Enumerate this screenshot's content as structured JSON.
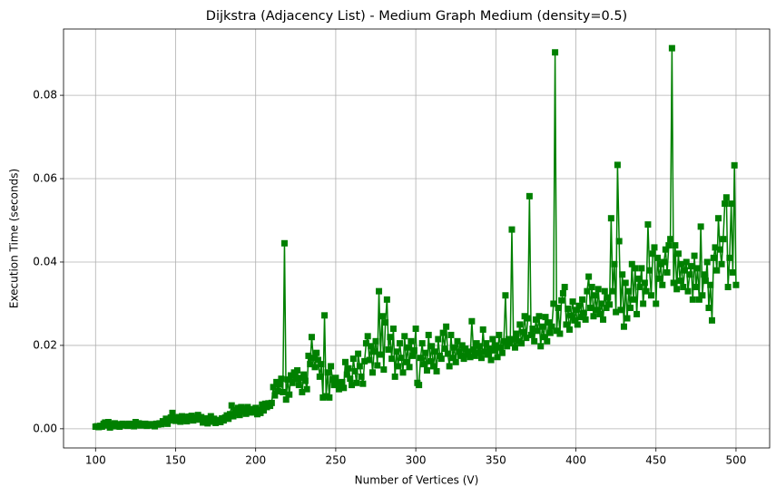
{
  "chart_data": {
    "type": "line",
    "title": "Dijkstra (Adjacency List) - Medium Graph Medium (density=0.5)",
    "x_label": "Number of Vertices (V)",
    "y_label": "Execution Time (seconds)",
    "grid": true,
    "marker": "square",
    "xlim": [
      80,
      521
    ],
    "ylim": [
      -0.0046,
      0.0959
    ],
    "xticks": [
      100,
      150,
      200,
      250,
      300,
      350,
      400,
      450,
      500
    ],
    "yticks": [
      {
        "value": 0,
        "label": "0.00"
      },
      {
        "value": 0.02,
        "label": "0.02"
      },
      {
        "value": 0.04,
        "label": "0.04"
      },
      {
        "value": 0.06,
        "label": "0.06"
      },
      {
        "value": 0.08,
        "label": "0.08"
      }
    ],
    "x": [
      100,
      101,
      102,
      103,
      104,
      105,
      106,
      107,
      108,
      109,
      110,
      111,
      112,
      113,
      114,
      115,
      116,
      117,
      118,
      119,
      120,
      121,
      122,
      123,
      124,
      125,
      126,
      127,
      128,
      129,
      130,
      131,
      132,
      133,
      134,
      135,
      136,
      137,
      138,
      139,
      140,
      141,
      142,
      143,
      144,
      145,
      146,
      147,
      148,
      149,
      150,
      151,
      152,
      153,
      154,
      155,
      156,
      157,
      158,
      159,
      160,
      161,
      162,
      163,
      164,
      165,
      166,
      167,
      168,
      169,
      170,
      171,
      172,
      173,
      174,
      175,
      176,
      177,
      178,
      179,
      180,
      181,
      182,
      183,
      184,
      185,
      186,
      187,
      188,
      189,
      190,
      191,
      192,
      193,
      194,
      195,
      196,
      197,
      198,
      199,
      200,
      201,
      202,
      203,
      204,
      205,
      206,
      207,
      208,
      209,
      210,
      211,
      212,
      213,
      214,
      215,
      216,
      217,
      218,
      219,
      220,
      221,
      222,
      223,
      224,
      225,
      226,
      227,
      228,
      229,
      230,
      231,
      232,
      233,
      234,
      235,
      236,
      237,
      238,
      239,
      240,
      241,
      242,
      243,
      244,
      245,
      246,
      247,
      248,
      249,
      250,
      251,
      252,
      253,
      254,
      255,
      256,
      257,
      258,
      259,
      260,
      261,
      262,
      263,
      264,
      265,
      266,
      267,
      268,
      269,
      270,
      271,
      272,
      273,
      274,
      275,
      276,
      277,
      278,
      279,
      280,
      281,
      282,
      283,
      284,
      285,
      286,
      287,
      288,
      289,
      290,
      291,
      292,
      293,
      294,
      295,
      296,
      297,
      298,
      299,
      300,
      301,
      302,
      303,
      304,
      305,
      306,
      307,
      308,
      309,
      310,
      311,
      312,
      313,
      314,
      315,
      316,
      317,
      318,
      319,
      320,
      321,
      322,
      323,
      324,
      325,
      326,
      327,
      328,
      329,
      330,
      331,
      332,
      333,
      334,
      335,
      336,
      337,
      338,
      339,
      340,
      341,
      342,
      343,
      344,
      345,
      346,
      347,
      348,
      349,
      350,
      351,
      352,
      353,
      354,
      355,
      356,
      357,
      358,
      359,
      360,
      361,
      362,
      363,
      364,
      365,
      366,
      367,
      368,
      369,
      370,
      371,
      372,
      373,
      374,
      375,
      376,
      377,
      378,
      379,
      380,
      381,
      382,
      383,
      384,
      385,
      386,
      387,
      388,
      389,
      390,
      391,
      392,
      393,
      394,
      395,
      396,
      397,
      398,
      399,
      400,
      401,
      402,
      403,
      404,
      405,
      406,
      407,
      408,
      409,
      410,
      411,
      412,
      413,
      414,
      415,
      416,
      417,
      418,
      419,
      420,
      421,
      422,
      423,
      424,
      425,
      426,
      427,
      428,
      429,
      430,
      431,
      432,
      433,
      434,
      435,
      436,
      437,
      438,
      439,
      440,
      441,
      442,
      443,
      444,
      445,
      446,
      447,
      448,
      449,
      450,
      451,
      452,
      453,
      454,
      455,
      456,
      457,
      458,
      459,
      460,
      461,
      462,
      463,
      464,
      465,
      466,
      467,
      468,
      469,
      470,
      471,
      472,
      473,
      474,
      475,
      476,
      477,
      478,
      479,
      480,
      481,
      482,
      483,
      484,
      485,
      486,
      487,
      488,
      489,
      490,
      491,
      492,
      493,
      494,
      495,
      496,
      497,
      498,
      499,
      500
    ],
    "series": [
      {
        "color": "#008000",
        "values": [
          0.0005,
          0.0006,
          0.0004,
          0.0007,
          0.0005,
          0.0012,
          0.0015,
          0.0008,
          0.0016,
          0.0003,
          0.001,
          0.0006,
          0.0013,
          0.0007,
          0.0011,
          0.0005,
          0.0009,
          0.0012,
          0.0008,
          0.001,
          0.0007,
          0.0012,
          0.0009,
          0.0011,
          0.0006,
          0.0016,
          0.001,
          0.0013,
          0.0008,
          0.0011,
          0.0009,
          0.0012,
          0.0007,
          0.001,
          0.0008,
          0.0011,
          0.0009,
          0.0006,
          0.0012,
          0.001,
          0.0013,
          0.0011,
          0.0018,
          0.0015,
          0.0024,
          0.0012,
          0.002,
          0.0027,
          0.0038,
          0.0025,
          0.0019,
          0.0022,
          0.0028,
          0.0017,
          0.003,
          0.0021,
          0.0026,
          0.0018,
          0.0029,
          0.0023,
          0.0031,
          0.002,
          0.0027,
          0.0024,
          0.0033,
          0.0022,
          0.0028,
          0.0015,
          0.0019,
          0.0025,
          0.0013,
          0.0022,
          0.003,
          0.0017,
          0.0024,
          0.0014,
          0.0021,
          0.0018,
          0.0016,
          0.0025,
          0.002,
          0.0027,
          0.0032,
          0.0024,
          0.0035,
          0.0056,
          0.003,
          0.0045,
          0.0038,
          0.005,
          0.0033,
          0.0052,
          0.0041,
          0.0048,
          0.0036,
          0.0052,
          0.0044,
          0.0039,
          0.0047,
          0.0042,
          0.005,
          0.0035,
          0.0045,
          0.0038,
          0.0058,
          0.0044,
          0.006,
          0.0052,
          0.0061,
          0.0055,
          0.0062,
          0.01,
          0.008,
          0.0112,
          0.009,
          0.0106,
          0.012,
          0.0088,
          0.0445,
          0.007,
          0.0118,
          0.0082,
          0.0128,
          0.011,
          0.0135,
          0.012,
          0.014,
          0.0105,
          0.0122,
          0.0088,
          0.013,
          0.0115,
          0.0095,
          0.0175,
          0.0155,
          0.022,
          0.017,
          0.0148,
          0.0182,
          0.0165,
          0.0125,
          0.0155,
          0.0075,
          0.0272,
          0.0078,
          0.0135,
          0.0075,
          0.015,
          0.0118,
          0.0105,
          0.0122,
          0.011,
          0.0095,
          0.01,
          0.0112,
          0.0098,
          0.016,
          0.013,
          0.0145,
          0.012,
          0.0105,
          0.0168,
          0.0138,
          0.011,
          0.018,
          0.015,
          0.0125,
          0.0108,
          0.0162,
          0.0205,
          0.0222,
          0.0165,
          0.0198,
          0.0135,
          0.0185,
          0.021,
          0.0152,
          0.033,
          0.0178,
          0.027,
          0.0142,
          0.0255,
          0.031,
          0.019,
          0.022,
          0.0168,
          0.024,
          0.0125,
          0.0185,
          0.015,
          0.0205,
          0.017,
          0.0135,
          0.0222,
          0.016,
          0.0195,
          0.0148,
          0.021,
          0.0175,
          0.0188,
          0.024,
          0.011,
          0.0105,
          0.017,
          0.0205,
          0.0155,
          0.0182,
          0.014,
          0.0225,
          0.0162,
          0.0198,
          0.015,
          0.0185,
          0.0138,
          0.0215,
          0.0175,
          0.0168,
          0.023,
          0.0192,
          0.0245,
          0.018,
          0.015,
          0.0225,
          0.017,
          0.0195,
          0.016,
          0.021,
          0.0185,
          0.0175,
          0.02,
          0.0168,
          0.0192,
          0.0178,
          0.0185,
          0.0172,
          0.0258,
          0.019,
          0.0175,
          0.0205,
          0.0182,
          0.0198,
          0.017,
          0.0238,
          0.0185,
          0.0205,
          0.0178,
          0.0192,
          0.0165,
          0.0215,
          0.0188,
          0.02,
          0.0172,
          0.0225,
          0.0195,
          0.0182,
          0.021,
          0.032,
          0.0198,
          0.0215,
          0.0205,
          0.0478,
          0.0215,
          0.0195,
          0.0228,
          0.021,
          0.025,
          0.0205,
          0.0232,
          0.027,
          0.0218,
          0.0265,
          0.0558,
          0.0225,
          0.024,
          0.021,
          0.0262,
          0.0235,
          0.027,
          0.0198,
          0.0245,
          0.022,
          0.0268,
          0.021,
          0.0255,
          0.023,
          0.0245,
          0.03,
          0.0903,
          0.0235,
          0.029,
          0.0228,
          0.0308,
          0.0325,
          0.034,
          0.025,
          0.0288,
          0.0238,
          0.0272,
          0.0305,
          0.026,
          0.0285,
          0.025,
          0.0295,
          0.0268,
          0.031,
          0.0278,
          0.0262,
          0.033,
          0.0365,
          0.029,
          0.034,
          0.027,
          0.032,
          0.0285,
          0.0335,
          0.0275,
          0.03,
          0.0262,
          0.033,
          0.029,
          0.0315,
          0.0298,
          0.0505,
          0.033,
          0.0395,
          0.028,
          0.0633,
          0.045,
          0.0285,
          0.037,
          0.0245,
          0.035,
          0.0265,
          0.033,
          0.029,
          0.0395,
          0.031,
          0.0385,
          0.0275,
          0.036,
          0.034,
          0.0385,
          0.03,
          0.035,
          0.033,
          0.049,
          0.038,
          0.032,
          0.042,
          0.0435,
          0.03,
          0.041,
          0.036,
          0.0395,
          0.0345,
          0.04,
          0.043,
          0.0375,
          0.044,
          0.0455,
          0.0913,
          0.035,
          0.044,
          0.0335,
          0.042,
          0.0355,
          0.0395,
          0.034,
          0.038,
          0.04,
          0.033,
          0.037,
          0.039,
          0.031,
          0.0415,
          0.034,
          0.0385,
          0.031,
          0.0485,
          0.032,
          0.037,
          0.0355,
          0.04,
          0.029,
          0.0345,
          0.026,
          0.041,
          0.0435,
          0.038,
          0.0505,
          0.043,
          0.0395,
          0.0455,
          0.054,
          0.0555,
          0.034,
          0.041,
          0.054,
          0.0375,
          0.0632,
          0.0345
        ]
      }
    ]
  }
}
